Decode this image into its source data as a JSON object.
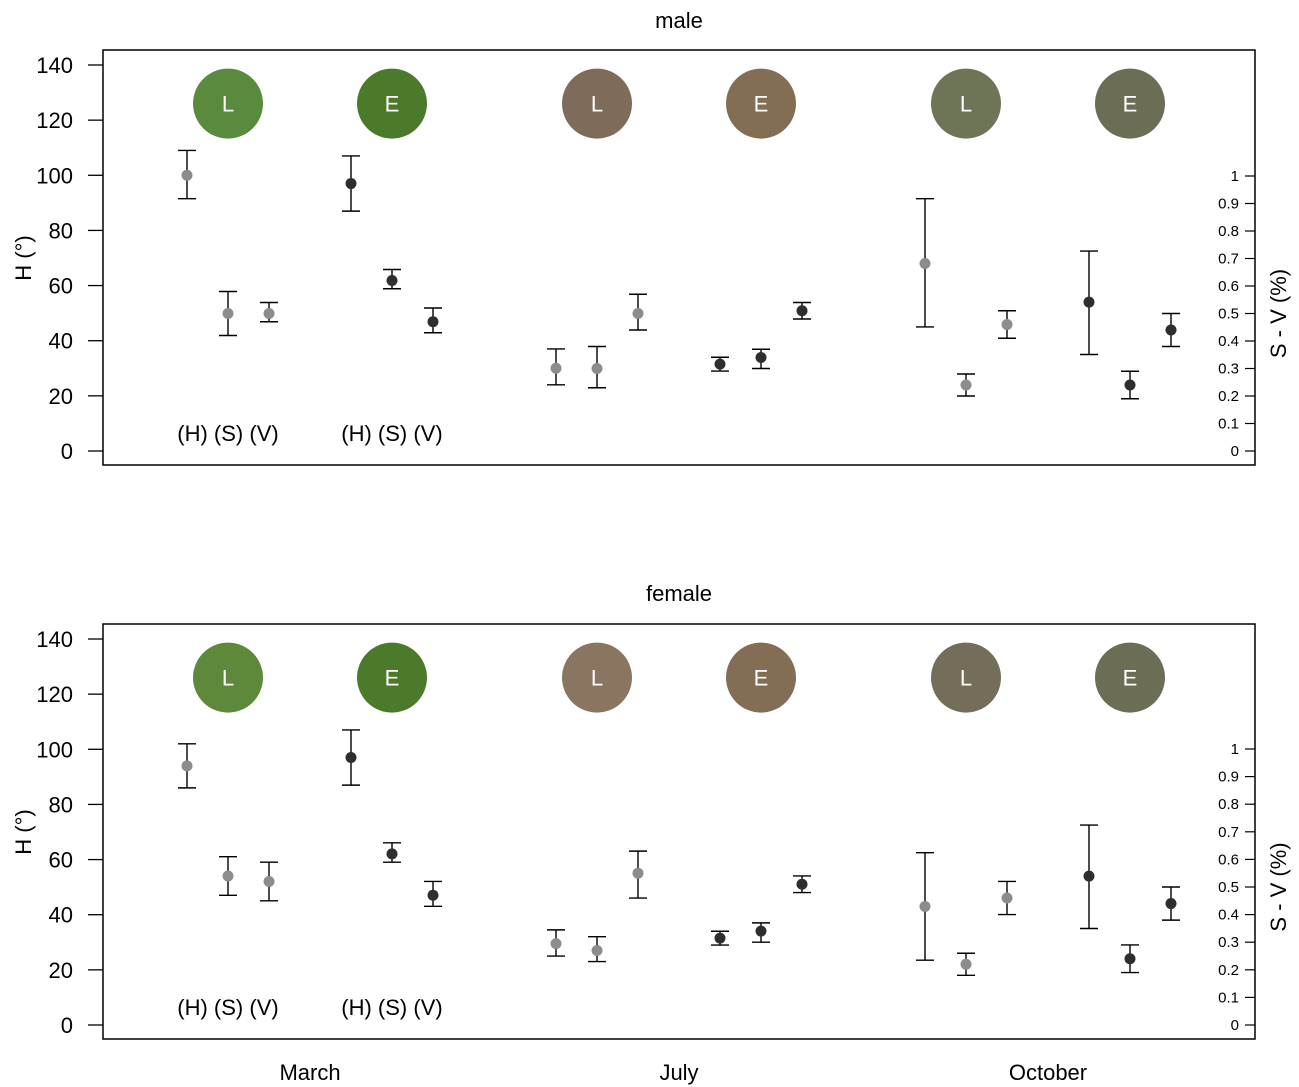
{
  "chart_data": [
    {
      "type": "scatter",
      "title": "male",
      "ylabel_left": "H (°)",
      "ylabel_right": "S - V (%)",
      "ylim_left": [
        0,
        140
      ],
      "yticks_left": [
        "0",
        "20",
        "40",
        "60",
        "80",
        "100",
        "120",
        "140"
      ],
      "ylim_right": [
        0,
        1
      ],
      "yticks_right": [
        "0",
        "0.1",
        "0.2",
        "0.3",
        "0.4",
        "0.5",
        "0.6",
        "0.7",
        "0.8",
        "0.9",
        "1"
      ],
      "annotations": [
        {
          "text": "(H) (S) (V)",
          "group": 0
        },
        {
          "text": "(H) (S) (V)",
          "group": 1
        }
      ],
      "groups": [
        {
          "badge": "L",
          "month": "March",
          "color": "#5a8a3e",
          "marker": "#8c8c8c",
          "points": [
            {
              "var": "H",
              "mean": 100,
              "low": 91.5,
              "high": 109
            },
            {
              "var": "S",
              "mean": 0.5,
              "low": 0.42,
              "high": 0.58
            },
            {
              "var": "V",
              "mean": 0.5,
              "low": 0.47,
              "high": 0.54
            }
          ]
        },
        {
          "badge": "E",
          "month": "March",
          "color": "#4a7a2a",
          "marker": "#2e2e2e",
          "points": [
            {
              "var": "H",
              "mean": 97,
              "low": 87,
              "high": 107
            },
            {
              "var": "S",
              "mean": 0.62,
              "low": 0.59,
              "high": 0.66
            },
            {
              "var": "V",
              "mean": 0.47,
              "low": 0.43,
              "high": 0.52
            }
          ]
        },
        {
          "badge": "L",
          "month": "July",
          "color": "#7f6b5a",
          "marker": "#8c8c8c",
          "points": [
            {
              "var": "H",
              "mean": 30,
              "low": 24,
              "high": 37
            },
            {
              "var": "S",
              "mean": 0.3,
              "low": 0.23,
              "high": 0.38
            },
            {
              "var": "V",
              "mean": 0.5,
              "low": 0.44,
              "high": 0.57
            }
          ]
        },
        {
          "badge": "E",
          "month": "July",
          "color": "#836d55",
          "marker": "#2e2e2e",
          "points": [
            {
              "var": "H",
              "mean": 31.5,
              "low": 29,
              "high": 34
            },
            {
              "var": "S",
              "mean": 0.34,
              "low": 0.3,
              "high": 0.37
            },
            {
              "var": "V",
              "mean": 0.51,
              "low": 0.48,
              "high": 0.54
            }
          ]
        },
        {
          "badge": "L",
          "month": "October",
          "color": "#6d7556",
          "marker": "#8c8c8c",
          "points": [
            {
              "var": "H",
              "mean": 68,
              "low": 45,
              "high": 91.5
            },
            {
              "var": "S",
              "mean": 0.24,
              "low": 0.2,
              "high": 0.28
            },
            {
              "var": "V",
              "mean": 0.46,
              "low": 0.41,
              "high": 0.51
            }
          ]
        },
        {
          "badge": "E",
          "month": "October",
          "color": "#6c6d55",
          "marker": "#2e2e2e",
          "points": [
            {
              "var": "H",
              "mean": 54,
              "low": 35,
              "high": 72.5
            },
            {
              "var": "S",
              "mean": 0.24,
              "low": 0.19,
              "high": 0.29
            },
            {
              "var": "V",
              "mean": 0.44,
              "low": 0.38,
              "high": 0.5
            }
          ]
        }
      ]
    },
    {
      "type": "scatter",
      "title": "female",
      "ylabel_left": "H (°)",
      "ylabel_right": "S - V (%)",
      "ylim_left": [
        0,
        140
      ],
      "yticks_left": [
        "0",
        "20",
        "40",
        "60",
        "80",
        "100",
        "120",
        "140"
      ],
      "ylim_right": [
        0,
        1
      ],
      "yticks_right": [
        "0",
        "0.1",
        "0.2",
        "0.3",
        "0.4",
        "0.5",
        "0.6",
        "0.7",
        "0.8",
        "0.9",
        "1"
      ],
      "xlabels": [
        "March",
        "July",
        "October"
      ],
      "annotations": [
        {
          "text": "(H) (S) (V)",
          "group": 0
        },
        {
          "text": "(H) (S) (V)",
          "group": 1
        }
      ],
      "groups": [
        {
          "badge": "L",
          "month": "March",
          "color": "#5e883a",
          "marker": "#8c8c8c",
          "points": [
            {
              "var": "H",
              "mean": 94,
              "low": 86,
              "high": 102
            },
            {
              "var": "S",
              "mean": 0.54,
              "low": 0.47,
              "high": 0.61
            },
            {
              "var": "V",
              "mean": 0.52,
              "low": 0.45,
              "high": 0.59
            }
          ]
        },
        {
          "badge": "E",
          "month": "March",
          "color": "#4a7a2a",
          "marker": "#2e2e2e",
          "points": [
            {
              "var": "H",
              "mean": 97,
              "low": 87,
              "high": 107
            },
            {
              "var": "S",
              "mean": 0.62,
              "low": 0.59,
              "high": 0.66
            },
            {
              "var": "V",
              "mean": 0.47,
              "low": 0.43,
              "high": 0.52
            }
          ]
        },
        {
          "badge": "L",
          "month": "July",
          "color": "#8a7660",
          "marker": "#8c8c8c",
          "points": [
            {
              "var": "H",
              "mean": 29.5,
              "low": 25,
              "high": 34.5
            },
            {
              "var": "S",
              "mean": 0.27,
              "low": 0.23,
              "high": 0.32
            },
            {
              "var": "V",
              "mean": 0.55,
              "low": 0.46,
              "high": 0.63
            }
          ]
        },
        {
          "badge": "E",
          "month": "July",
          "color": "#836d55",
          "marker": "#2e2e2e",
          "points": [
            {
              "var": "H",
              "mean": 31.5,
              "low": 29,
              "high": 34
            },
            {
              "var": "S",
              "mean": 0.34,
              "low": 0.3,
              "high": 0.37
            },
            {
              "var": "V",
              "mean": 0.51,
              "low": 0.48,
              "high": 0.54
            }
          ]
        },
        {
          "badge": "L",
          "month": "October",
          "color": "#736d5a",
          "marker": "#8c8c8c",
          "points": [
            {
              "var": "H",
              "mean": 43,
              "low": 23.5,
              "high": 62.5
            },
            {
              "var": "S",
              "mean": 0.22,
              "low": 0.18,
              "high": 0.26
            },
            {
              "var": "V",
              "mean": 0.46,
              "low": 0.4,
              "high": 0.52
            }
          ]
        },
        {
          "badge": "E",
          "month": "October",
          "color": "#6c6d55",
          "marker": "#2e2e2e",
          "points": [
            {
              "var": "H",
              "mean": 54,
              "low": 35,
              "high": 72.5
            },
            {
              "var": "S",
              "mean": 0.24,
              "low": 0.19,
              "high": 0.29
            },
            {
              "var": "V",
              "mean": 0.44,
              "low": 0.38,
              "high": 0.5
            }
          ]
        }
      ]
    }
  ]
}
